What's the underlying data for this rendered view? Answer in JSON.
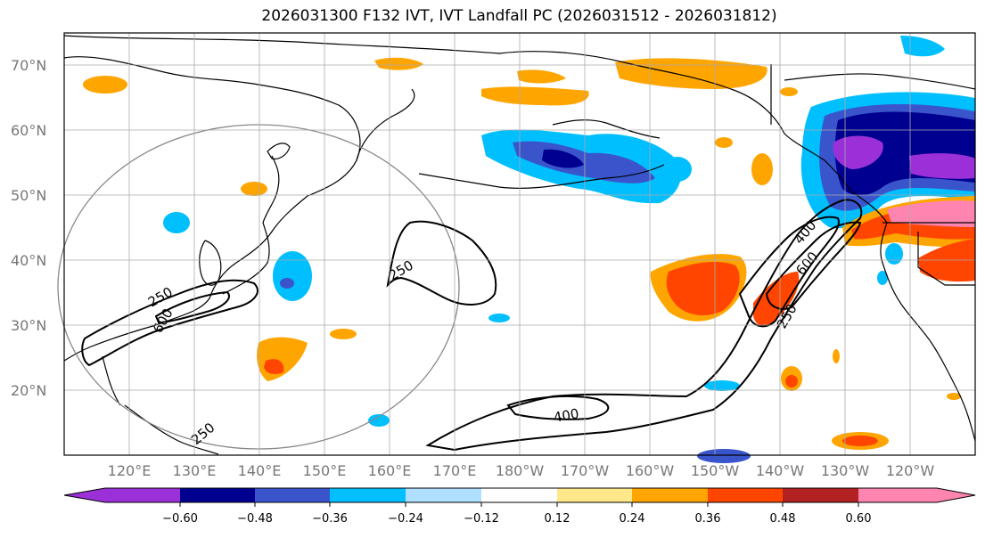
{
  "title": "2026031300 F132 IVT, IVT Landfall PC (2026031512 - 2026031812)",
  "lat_labels": [
    "70°N",
    "60°N",
    "50°N",
    "40°N",
    "30°N",
    "20°N"
  ],
  "lon_labels": [
    "120°E",
    "130°E",
    "140°E",
    "150°E",
    "160°E",
    "170°E",
    "180°W",
    "170°W",
    "160°W",
    "150°W",
    "140°W",
    "130°W",
    "120°W"
  ],
  "contour_labels": [
    "250",
    "600",
    "250",
    "400",
    "400",
    "600",
    "250",
    "250"
  ],
  "colorbar": {
    "ticks": [
      "−0.60",
      "−0.48",
      "−0.36",
      "−0.24",
      "−0.12",
      "0.12",
      "0.24",
      "0.36",
      "0.48",
      "0.60"
    ],
    "colors": [
      "#9b30d9",
      "#000090",
      "#3a55cc",
      "#00bfff",
      "#b0e0ff",
      "#ffffff",
      "#ffe88a",
      "#ffa500",
      "#ff4500",
      "#b22222",
      "#ff85b0"
    ]
  },
  "colors": {
    "pink": "#ff85b0",
    "darkred": "#b22222",
    "red": "#ff4500",
    "orange": "#ffa500",
    "yellow": "#ffe88a",
    "lightblue": "#b0e0ff",
    "cyan": "#00bfff",
    "blue": "#3a55cc",
    "navy": "#000090",
    "purple": "#9b30d9"
  }
}
